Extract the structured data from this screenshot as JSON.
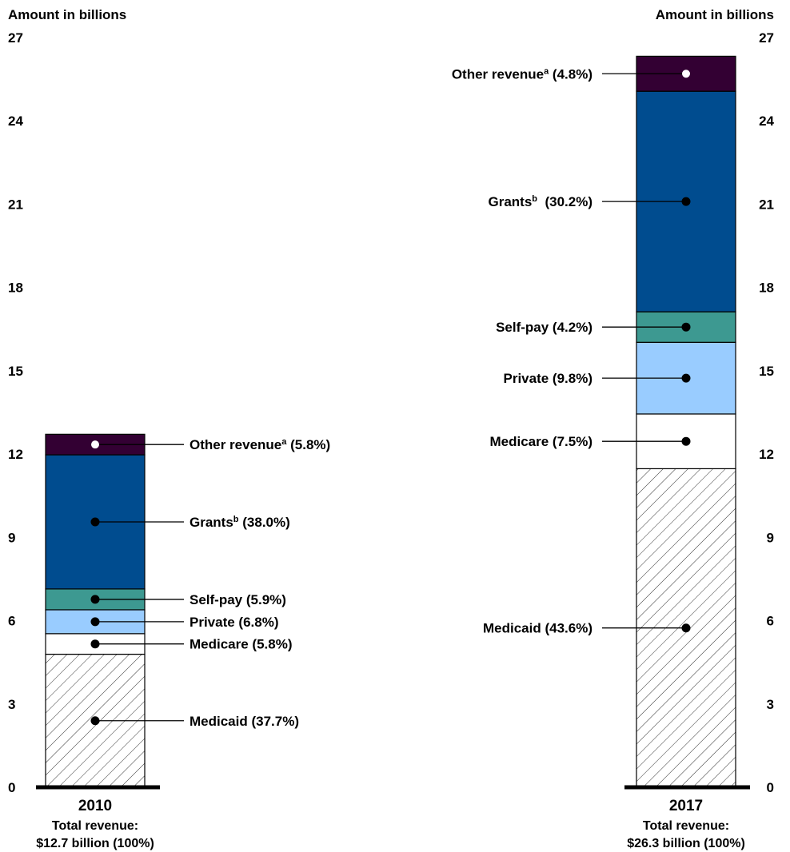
{
  "chart_data": {
    "type": "bar",
    "stacked": true,
    "axis_title_left": "Amount in billions",
    "axis_title_right": "Amount in billions",
    "y_ticks": [
      "0",
      "3",
      "6",
      "9",
      "12",
      "15",
      "18",
      "21",
      "24",
      "27"
    ],
    "ylim": [
      0,
      27
    ],
    "bars": [
      {
        "year": "2010",
        "total_line1": "Total revenue:",
        "total_line2": "$12.7 billion (100%)",
        "segments": [
          {
            "name": "Medicaid",
            "value": 4.79,
            "label": "Medicaid (37.7%)"
          },
          {
            "name": "Medicare",
            "value": 0.74,
            "label": "Medicare (5.8%)"
          },
          {
            "name": "Private",
            "value": 0.86,
            "label": "Private (6.8%)"
          },
          {
            "name": "Self-pay",
            "value": 0.75,
            "label": "Self-pay (5.9%)"
          },
          {
            "name": "Grants",
            "value": 4.83,
            "label_main": "Grants",
            "label_sup": "b",
            "label_rest": " (38.0%)"
          },
          {
            "name": "Other revenue",
            "value": 0.74,
            "label_main": "Other revenue",
            "label_sup": "a",
            "label_rest": " (5.8%)"
          }
        ]
      },
      {
        "year": "2017",
        "total_line1": "Total revenue:",
        "total_line2": "$26.3 billion (100%)",
        "segments": [
          {
            "name": "Medicaid",
            "value": 11.47,
            "label": "Medicaid (43.6%)"
          },
          {
            "name": "Medicare",
            "value": 1.97,
            "label": "Medicare (7.5%)"
          },
          {
            "name": "Private",
            "value": 2.58,
            "label": "Private (9.8%)"
          },
          {
            "name": "Self-pay",
            "value": 1.1,
            "label": "Self-pay (4.2%)"
          },
          {
            "name": "Grants",
            "value": 7.94,
            "label_main": "Grants",
            "label_sup": "b",
            "label_rest": "  (30.2%)"
          },
          {
            "name": "Other revenue",
            "value": 1.26,
            "label_main": "Other revenue",
            "label_sup": "a",
            "label_rest": " (4.8%)"
          }
        ]
      }
    ],
    "colors": {
      "Medicaid": "hatched",
      "Medicare": "#ffffff",
      "Private": "#99ccff",
      "Self-pay": "#3d9991",
      "Grants": "#004c8f",
      "Other revenue": "#330033"
    }
  }
}
